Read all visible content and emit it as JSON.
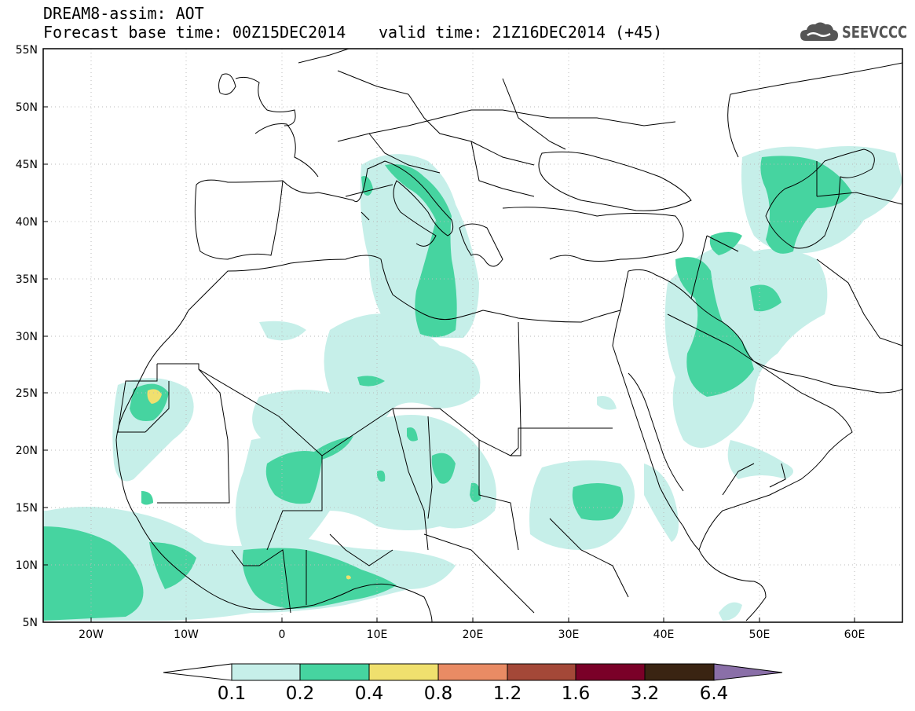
{
  "header": {
    "line1": "DREAM8-assim: AOT",
    "line2_left": "Forecast base time: 00Z15DEC2014",
    "line2_right": "valid time: 21Z16DEC2014 (+45)"
  },
  "logo": {
    "icon": "cloud-icon",
    "text": "SEEVCCC",
    "color": "#555555"
  },
  "map": {
    "lat_labels": [
      "55N",
      "50N",
      "45N",
      "40N",
      "35N",
      "30N",
      "25N",
      "20N",
      "15N",
      "10N",
      "5N"
    ],
    "lon_labels": [
      "20W",
      "10W",
      "0",
      "10E",
      "20E",
      "30E",
      "40E",
      "50E",
      "60E"
    ],
    "colors": {
      "aot_0_1": "#c6efe9",
      "aot_0_2": "#46d4a0",
      "aot_0_4": "#f0e06e",
      "border": "#000000",
      "grid": "#bbbbbb"
    }
  },
  "colorbar": {
    "labels": [
      "0.1",
      "0.2",
      "0.4",
      "0.8",
      "1.2",
      "1.6",
      "3.2",
      "6.4"
    ],
    "colors": [
      "#ffffff",
      "#c6efe9",
      "#46d4a0",
      "#f0e06e",
      "#e98b64",
      "#a44838",
      "#7a0028",
      "#3a2412",
      "#8a6fa8"
    ]
  }
}
